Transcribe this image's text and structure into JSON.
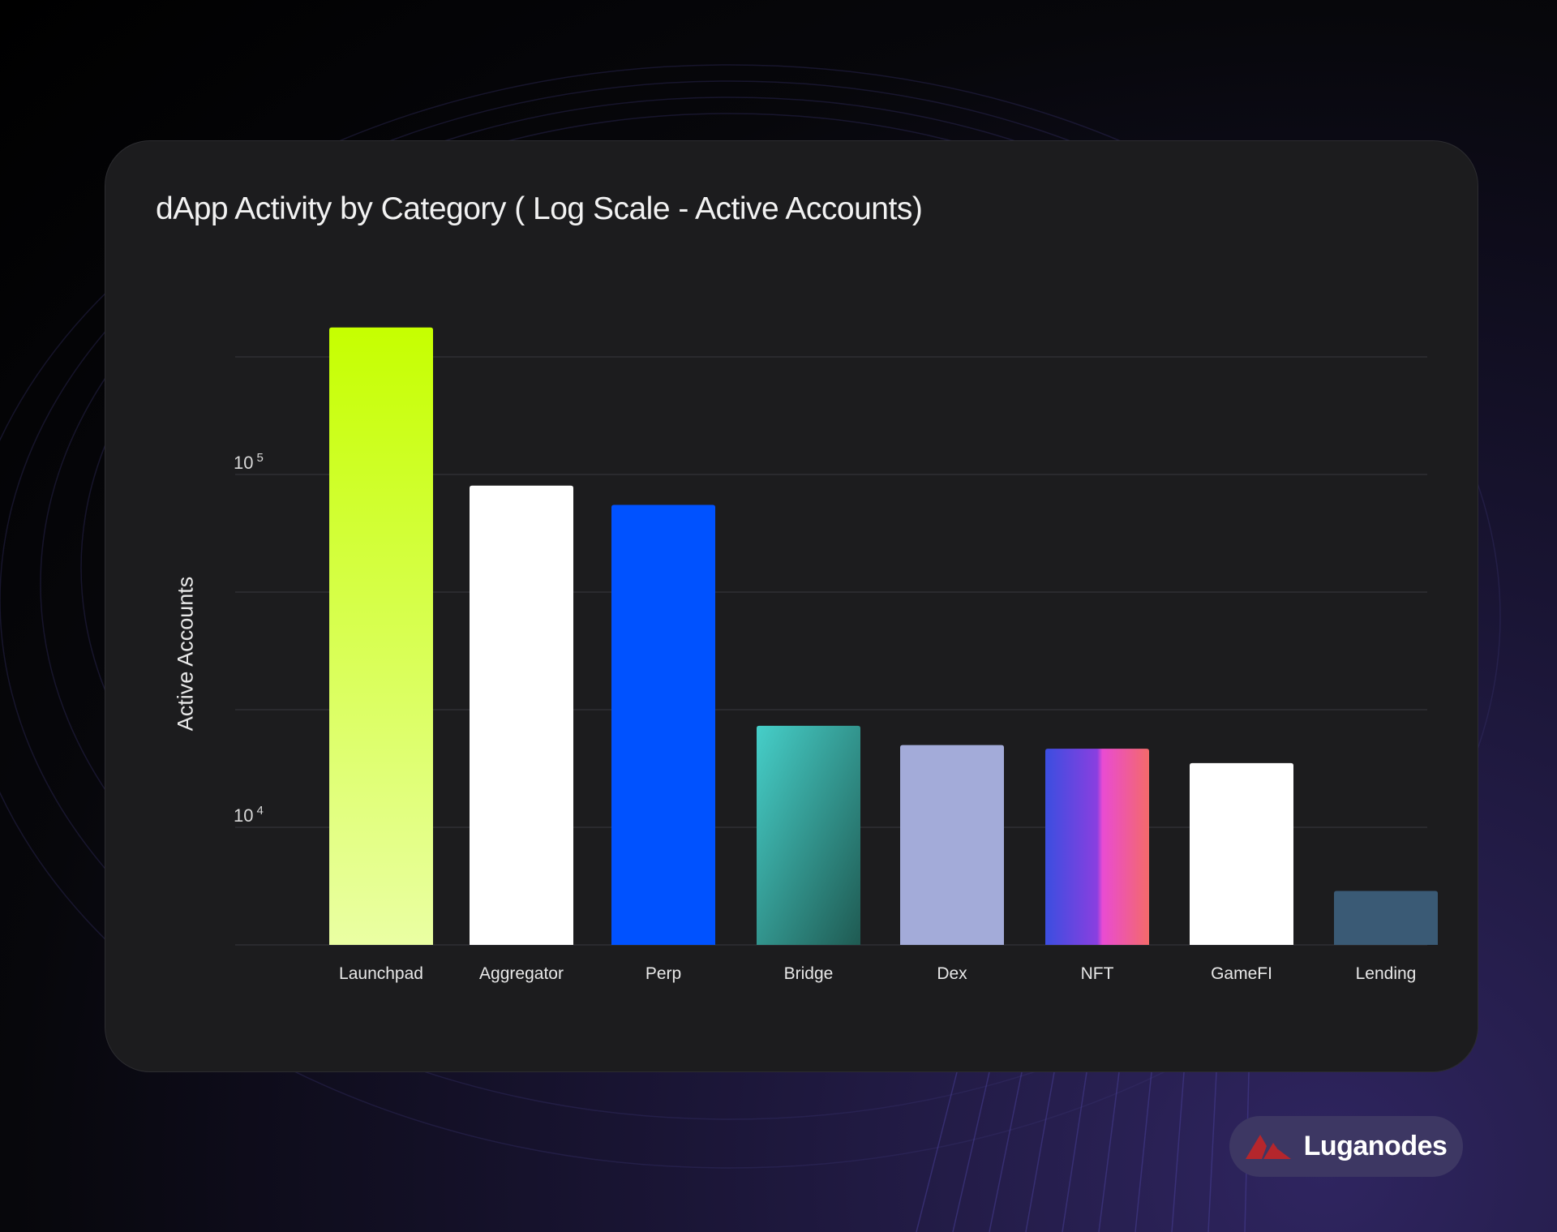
{
  "brand": {
    "name": "Luganodes",
    "logo_color": "#b5262c"
  },
  "chart_data": {
    "type": "bar",
    "title": "dApp Activity by Category ( Log Scale - Active Accounts)",
    "xlabel": "",
    "ylabel": "Active Accounts",
    "yscale": "log",
    "ylim": [
      4642,
      464159
    ],
    "grid": true,
    "y_ticks": [
      {
        "value": 10000,
        "base": "10",
        "exp": "4"
      },
      {
        "value": 100000,
        "base": "10",
        "exp": "5"
      }
    ],
    "categories": [
      "Launchpad",
      "Aggregator",
      "Perp",
      "Bridge",
      "Dex",
      "NFT",
      "GameFI",
      "Lending"
    ],
    "values": [
      261000,
      93000,
      82000,
      19400,
      17100,
      16700,
      15200,
      6600
    ],
    "colors": [
      "#c6ff00",
      "#ffffff",
      "#0052ff",
      "#3bbfb8",
      "#a3abd9",
      "#e94bd3",
      "#ffffff",
      "#3a5a75"
    ]
  }
}
